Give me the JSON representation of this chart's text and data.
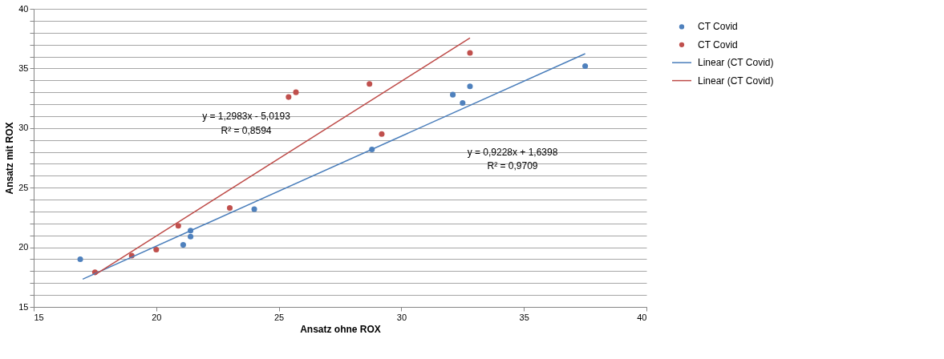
{
  "chart_data": {
    "type": "scatter",
    "xlabel": "Ansatz ohne ROX",
    "ylabel": "Ansatz mit ROX",
    "xlim": [
      15,
      40
    ],
    "xticks": [
      15,
      20,
      25,
      30,
      35,
      40
    ],
    "ylim": [
      15,
      40
    ],
    "yticks": [
      15,
      {
        "value": 16,
        "label": null
      },
      {
        "value": 17,
        "label": null
      },
      {
        "value": 18,
        "label": null
      },
      {
        "value": 19,
        "label": null
      },
      20,
      {
        "value": 21,
        "label": null
      },
      {
        "value": 22,
        "label": null
      },
      {
        "value": 23,
        "label": null
      },
      {
        "value": 24,
        "label": null
      },
      25,
      {
        "value": 26,
        "label": null
      },
      {
        "value": 27,
        "label": null
      },
      {
        "value": 28,
        "label": null
      },
      {
        "value": 29,
        "label": null
      },
      30,
      {
        "value": 31,
        "label": null
      },
      {
        "value": 32,
        "label": null
      },
      {
        "value": 33,
        "label": null
      },
      {
        "value": 34,
        "label": null
      },
      35,
      {
        "value": 36,
        "label": null
      },
      {
        "value": 37,
        "label": null
      },
      {
        "value": 38,
        "label": null
      },
      {
        "value": 39,
        "label": null
      },
      40
    ],
    "grid": "y",
    "legend": "right",
    "marker": "circle",
    "series": [
      {
        "name": "CT Covid",
        "color": "#4f81bd",
        "x": [
          16.9,
          21.1,
          21.4,
          21.4,
          24.0,
          28.8,
          32.1,
          32.5,
          32.8,
          37.5
        ],
        "values": [
          19.0,
          20.2,
          20.9,
          21.4,
          23.2,
          28.2,
          32.8,
          32.1,
          33.5,
          35.2
        ]
      },
      {
        "name": "CT Covid",
        "color": "#c0504d",
        "x": [
          17.5,
          19.0,
          20.0,
          20.9,
          23.0,
          25.4,
          25.7,
          28.7,
          29.2,
          32.8
        ],
        "values": [
          17.9,
          19.3,
          19.8,
          21.8,
          23.3,
          32.6,
          33.0,
          33.7,
          29.5,
          36.3
        ]
      },
      {
        "name": "Linear (CT Covid)",
        "type": "line",
        "marker": "none",
        "color": "#4a7ebb",
        "x": [
          17.0,
          37.5
        ],
        "values": [
          17.33,
          36.24
        ]
      },
      {
        "name": "Linear (CT Covid)",
        "type": "line",
        "marker": "none",
        "color": "#be4b48",
        "x": [
          17.5,
          32.8
        ],
        "values": [
          17.7,
          37.56
        ]
      }
    ],
    "annotations": [
      "y = 1,2983x  - 5,0193",
      "R² = 0,8594",
      "y = 0,9228x  + 1,6398",
      "R² = 0,9709"
    ]
  }
}
